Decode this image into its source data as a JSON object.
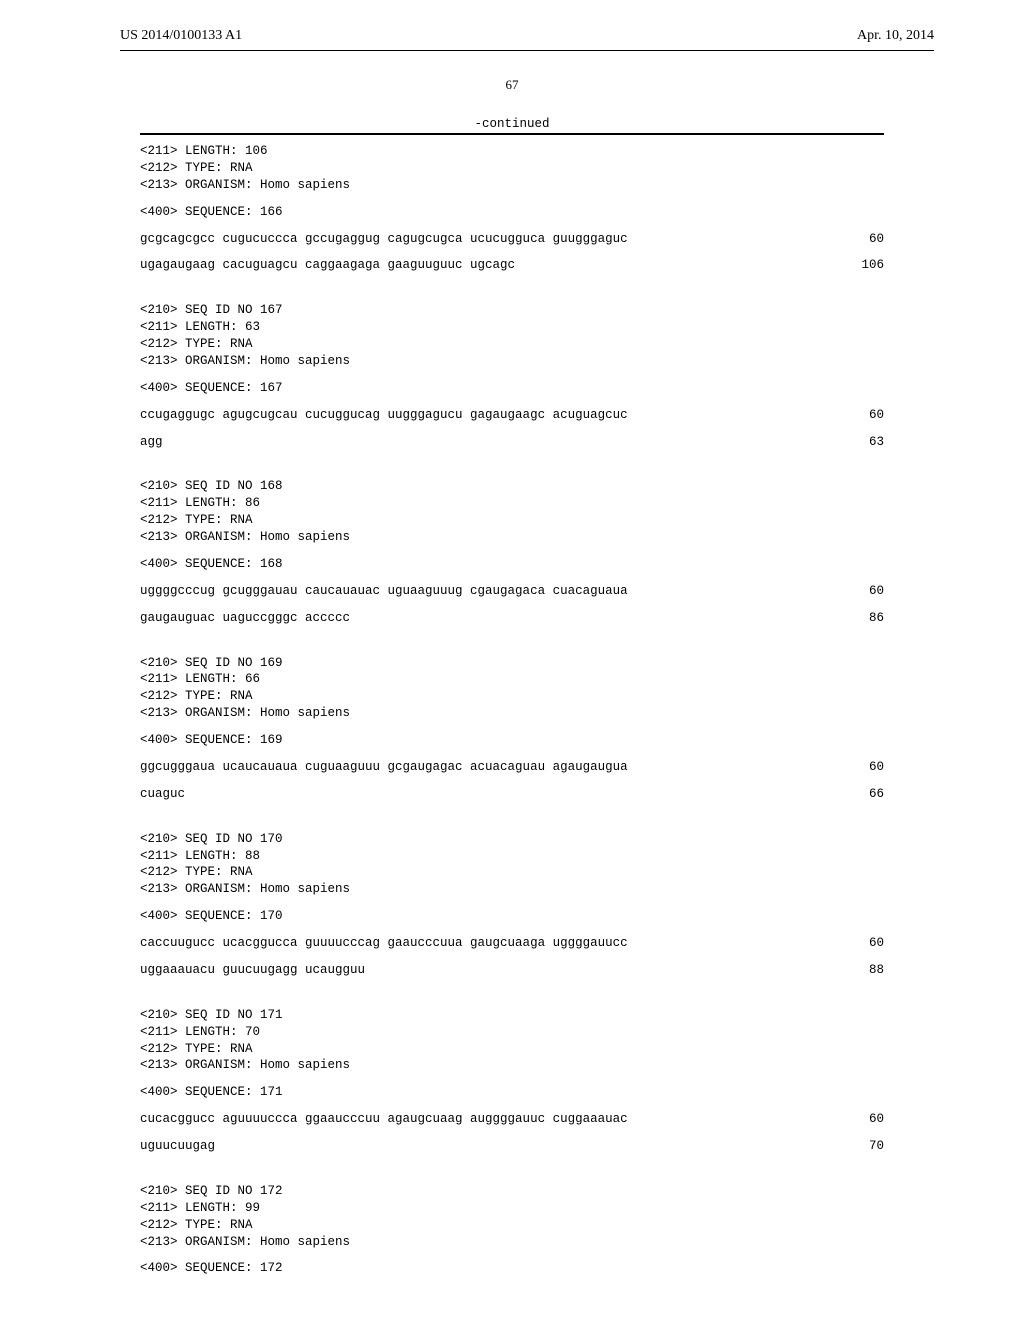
{
  "header": {
    "pub_number": "US 2014/0100133 A1",
    "pub_date": "Apr. 10, 2014"
  },
  "page_number": "67",
  "continued_label": "-continued",
  "sequences": [
    {
      "meta": [
        "<211> LENGTH: 106",
        "<212> TYPE: RNA",
        "<213> ORGANISM: Homo sapiens"
      ],
      "seq_label": "<400> SEQUENCE: 166",
      "rows": [
        {
          "seq": "gcgcagcgcc cugucuccca gccugaggug cagugcugca ucucugguca guugggaguc",
          "num": "60"
        },
        {
          "seq": "ugagaugaag cacuguagcu caggaagaga gaaguuguuc ugcagc",
          "num": "106"
        }
      ]
    },
    {
      "meta": [
        "<210> SEQ ID NO 167",
        "<211> LENGTH: 63",
        "<212> TYPE: RNA",
        "<213> ORGANISM: Homo sapiens"
      ],
      "seq_label": "<400> SEQUENCE: 167",
      "rows": [
        {
          "seq": "ccugaggugc agugcugcau cucuggucag uugggagucu gagaugaagc acuguagcuc",
          "num": "60"
        },
        {
          "seq": "agg",
          "num": "63"
        }
      ]
    },
    {
      "meta": [
        "<210> SEQ ID NO 168",
        "<211> LENGTH: 86",
        "<212> TYPE: RNA",
        "<213> ORGANISM: Homo sapiens"
      ],
      "seq_label": "<400> SEQUENCE: 168",
      "rows": [
        {
          "seq": "uggggcccug gcugggauau caucauauac uguaaguuug cgaugagaca cuacaguaua",
          "num": "60"
        },
        {
          "seq": "gaugauguac uaguccgggc accccc",
          "num": "86"
        }
      ]
    },
    {
      "meta": [
        "<210> SEQ ID NO 169",
        "<211> LENGTH: 66",
        "<212> TYPE: RNA",
        "<213> ORGANISM: Homo sapiens"
      ],
      "seq_label": "<400> SEQUENCE: 169",
      "rows": [
        {
          "seq": "ggcugggaua ucaucauaua cuguaaguuu gcgaugagac acuacaguau agaugaugua",
          "num": "60"
        },
        {
          "seq": "cuaguc",
          "num": "66"
        }
      ]
    },
    {
      "meta": [
        "<210> SEQ ID NO 170",
        "<211> LENGTH: 88",
        "<212> TYPE: RNA",
        "<213> ORGANISM: Homo sapiens"
      ],
      "seq_label": "<400> SEQUENCE: 170",
      "rows": [
        {
          "seq": "caccuugucc ucacggucca guuuucccag gaaucccuua gaugcuaaga uggggauucc",
          "num": "60"
        },
        {
          "seq": "uggaaauacu guucuugagg ucaugguu",
          "num": "88"
        }
      ]
    },
    {
      "meta": [
        "<210> SEQ ID NO 171",
        "<211> LENGTH: 70",
        "<212> TYPE: RNA",
        "<213> ORGANISM: Homo sapiens"
      ],
      "seq_label": "<400> SEQUENCE: 171",
      "rows": [
        {
          "seq": "cucacggucc aguuuuccca ggaaucccuu agaugcuaag auggggauuc cuggaaauac",
          "num": "60"
        },
        {
          "seq": "uguucuugag",
          "num": "70"
        }
      ]
    },
    {
      "meta": [
        "<210> SEQ ID NO 172",
        "<211> LENGTH: 99",
        "<212> TYPE: RNA",
        "<213> ORGANISM: Homo sapiens"
      ],
      "seq_label": "<400> SEQUENCE: 172",
      "rows": []
    }
  ]
}
